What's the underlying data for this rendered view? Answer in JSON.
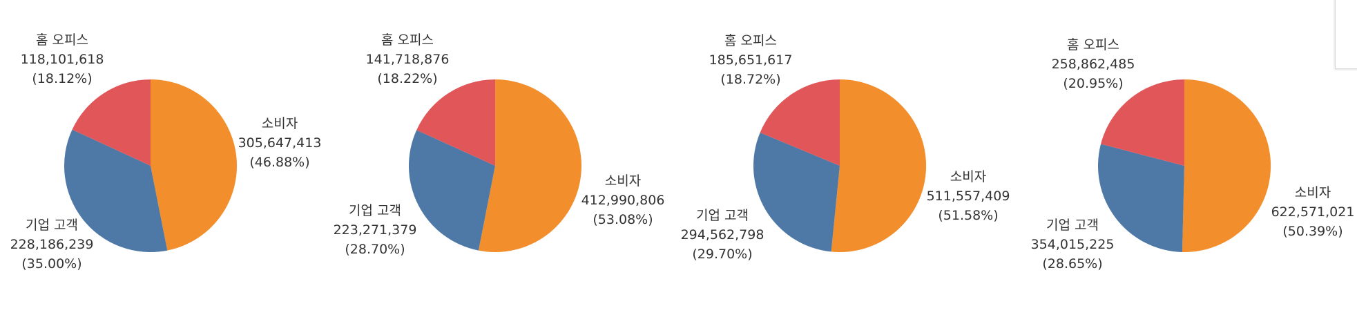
{
  "colors": {
    "소비자": "#F28E2B",
    "기업 고객": "#4E79A7",
    "홈 오피스": "#E15759"
  },
  "chart_data": [
    {
      "type": "pie",
      "slices": [
        {
          "name": "소비자",
          "value": 305647413,
          "value_label": "305,647,413",
          "percent_label": "(46.88%)"
        },
        {
          "name": "기업 고객",
          "value": 228186239,
          "value_label": "228,186,239",
          "percent_label": "(35.00%)"
        },
        {
          "name": "홈 오피스",
          "value": 118101618,
          "value_label": "118,101,618",
          "percent_label": "(18.12%)"
        }
      ]
    },
    {
      "type": "pie",
      "slices": [
        {
          "name": "소비자",
          "value": 412990806,
          "value_label": "412,990,806",
          "percent_label": "(53.08%)"
        },
        {
          "name": "기업 고객",
          "value": 223271379,
          "value_label": "223,271,379",
          "percent_label": "(28.70%)"
        },
        {
          "name": "홈 오피스",
          "value": 141718876,
          "value_label": "141,718,876",
          "percent_label": "(18.22%)"
        }
      ]
    },
    {
      "type": "pie",
      "slices": [
        {
          "name": "소비자",
          "value": 511557409,
          "value_label": "511,557,409",
          "percent_label": "(51.58%)"
        },
        {
          "name": "기업 고객",
          "value": 294562798,
          "value_label": "294,562,798",
          "percent_label": "(29.70%)"
        },
        {
          "name": "홈 오피스",
          "value": 185651617,
          "value_label": "185,651,617",
          "percent_label": "(18.72%)"
        }
      ]
    },
    {
      "type": "pie",
      "slices": [
        {
          "name": "소비자",
          "value": 622571021,
          "value_label": "622,571,021",
          "percent_label": "(50.39%)"
        },
        {
          "name": "기업 고객",
          "value": 354015225,
          "value_label": "354,015,225",
          "percent_label": "(28.65%)"
        },
        {
          "name": "홈 오피스",
          "value": 258862485,
          "value_label": "258,862,485",
          "percent_label": "(20.95%)"
        }
      ]
    }
  ]
}
